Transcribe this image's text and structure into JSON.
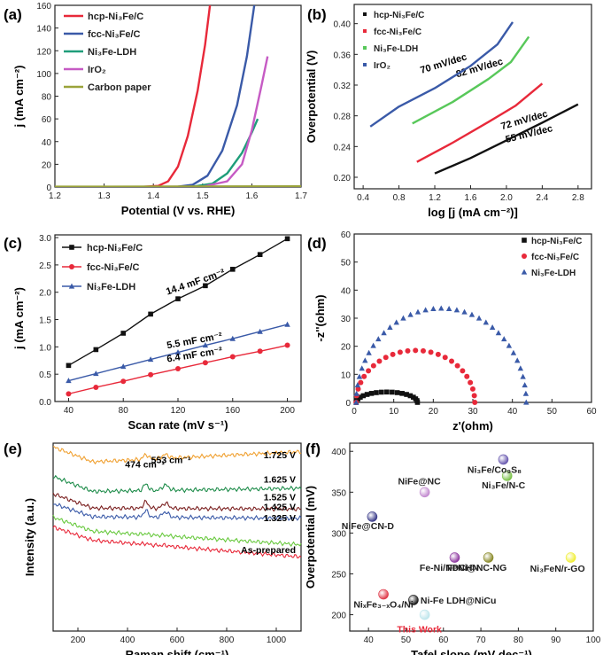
{
  "colors": {
    "red": "#e8293a",
    "blue": "#3a5aa8",
    "green": "#1f9e7a",
    "magenta": "#c65bc4",
    "olive": "#9aa33a",
    "black": "#111111",
    "orange": "#f0a030",
    "darkgreen": "#1e8c4a",
    "maroon": "#7a1f1f",
    "ltgreen": "#69c93f",
    "lightgreen": "#58c85a"
  },
  "chart_data": [
    {
      "id": "a",
      "panel_label": "(a)",
      "type": "line",
      "xlabel": "Potential (V vs. RHE)",
      "ylabel": "j (mA cm⁻²)",
      "xlim": [
        1.2,
        1.7
      ],
      "ylim": [
        0,
        160
      ],
      "xticks": [
        "1.2",
        "1.3",
        "1.4",
        "1.5",
        "1.6",
        "1.7"
      ],
      "yticks": [
        "0",
        "20",
        "40",
        "60",
        "80",
        "100",
        "120",
        "140",
        "160"
      ],
      "series": [
        {
          "name": "hcp-Ni₃Fe/C",
          "color_key": "red",
          "points": [
            [
              1.2,
              0
            ],
            [
              1.38,
              0.2
            ],
            [
              1.41,
              1
            ],
            [
              1.43,
              5
            ],
            [
              1.45,
              18
            ],
            [
              1.47,
              45
            ],
            [
              1.49,
              85
            ],
            [
              1.505,
              125
            ],
            [
              1.515,
              160
            ]
          ]
        },
        {
          "name": "fcc-Ni₃Fe/C",
          "color_key": "blue",
          "points": [
            [
              1.2,
              0
            ],
            [
              1.45,
              0.3
            ],
            [
              1.48,
              2
            ],
            [
              1.51,
              10
            ],
            [
              1.54,
              32
            ],
            [
              1.57,
              72
            ],
            [
              1.59,
              115
            ],
            [
              1.605,
              160
            ]
          ]
        },
        {
          "name": "Ni₃Fe-LDH",
          "color_key": "green",
          "points": [
            [
              1.2,
              0
            ],
            [
              1.48,
              0.3
            ],
            [
              1.52,
              3
            ],
            [
              1.55,
              12
            ],
            [
              1.58,
              30
            ],
            [
              1.6,
              48
            ],
            [
              1.612,
              60
            ]
          ]
        },
        {
          "name": "IrO₂",
          "color_key": "magenta",
          "points": [
            [
              1.2,
              0
            ],
            [
              1.5,
              0.3
            ],
            [
              1.55,
              5
            ],
            [
              1.58,
              20
            ],
            [
              1.6,
              50
            ],
            [
              1.62,
              90
            ],
            [
              1.632,
              115
            ]
          ]
        },
        {
          "name": "Carbon paper",
          "color_key": "olive",
          "points": [
            [
              1.2,
              0.3
            ],
            [
              1.7,
              0.6
            ]
          ]
        }
      ]
    },
    {
      "id": "b",
      "panel_label": "(b)",
      "type": "line",
      "xlabel": "log [j (mA cm⁻²)]",
      "ylabel": "Overpotential (V)",
      "xlim": [
        0.3,
        2.95
      ],
      "ylim": [
        0.185,
        0.425
      ],
      "xticks": [
        "0.4",
        "0.8",
        "1.2",
        "1.6",
        "2.0",
        "2.4",
        "2.8"
      ],
      "yticks": [
        "0.20",
        "0.24",
        "0.28",
        "0.32",
        "0.36",
        "0.40"
      ],
      "legend": [
        "hcp-Ni₃Fe/C",
        "fcc-Ni₃Fe/C",
        "Ni₃Fe-LDH",
        "IrO₂"
      ],
      "legend_color_keys": [
        "black",
        "red",
        "lightgreen",
        "blue"
      ],
      "series": [
        {
          "name": "hcp-Ni₃Fe/C",
          "color_key": "black",
          "slope_label": "55 mV/dec",
          "points": [
            [
              1.2,
              0.205
            ],
            [
              1.6,
              0.225
            ],
            [
              2.0,
              0.248
            ],
            [
              2.4,
              0.271
            ],
            [
              2.8,
              0.295
            ]
          ]
        },
        {
          "name": "fcc-Ni₃Fe/C",
          "color_key": "red",
          "slope_label": "72 mV/dec",
          "points": [
            [
              1.0,
              0.22
            ],
            [
              1.4,
              0.245
            ],
            [
              1.8,
              0.272
            ],
            [
              2.1,
              0.293
            ],
            [
              2.4,
              0.322
            ]
          ]
        },
        {
          "name": "Ni₃Fe-LDH",
          "color_key": "lightgreen",
          "slope_label": "82 mV/dec",
          "points": [
            [
              0.95,
              0.27
            ],
            [
              1.4,
              0.298
            ],
            [
              1.8,
              0.328
            ],
            [
              2.05,
              0.35
            ],
            [
              2.25,
              0.383
            ]
          ]
        },
        {
          "name": "IrO₂",
          "color_key": "blue",
          "slope_label": "70 mV/dec",
          "points": [
            [
              0.48,
              0.266
            ],
            [
              0.8,
              0.292
            ],
            [
              1.2,
              0.316
            ],
            [
              1.6,
              0.345
            ],
            [
              1.9,
              0.373
            ],
            [
              2.07,
              0.402
            ]
          ]
        }
      ]
    },
    {
      "id": "c",
      "panel_label": "(c)",
      "type": "line",
      "xlabel": "Scan rate (mV s⁻¹)",
      "ylabel": "j (mA cm⁻²)",
      "xlim": [
        30,
        210
      ],
      "ylim": [
        0,
        3.05
      ],
      "xticks": [
        "40",
        "80",
        "120",
        "160",
        "200"
      ],
      "yticks": [
        "0.0",
        "0.5",
        "1.0",
        "1.5",
        "2.0",
        "2.5",
        "3.0"
      ],
      "x": [
        40,
        60,
        80,
        100,
        120,
        140,
        160,
        180,
        200
      ],
      "series": [
        {
          "name": "hcp-Ni₃Fe/C",
          "color_key": "black",
          "marker": "square",
          "capacitance": "14.4 mF cm⁻²",
          "values": [
            0.66,
            0.95,
            1.25,
            1.6,
            1.88,
            2.12,
            2.42,
            2.69,
            2.98
          ]
        },
        {
          "name": "fcc-Ni₃Fe/C",
          "color_key": "red",
          "marker": "circle",
          "capacitance": "5.5 mF cm⁻²",
          "values": [
            0.14,
            0.26,
            0.37,
            0.49,
            0.6,
            0.71,
            0.82,
            0.92,
            1.03
          ]
        },
        {
          "name": "Ni₃Fe-LDH",
          "color_key": "blue",
          "marker": "triangle",
          "capacitance": "6.4 mF cm⁻²",
          "values": [
            0.38,
            0.51,
            0.64,
            0.77,
            0.9,
            1.03,
            1.15,
            1.28,
            1.41
          ]
        }
      ]
    },
    {
      "id": "d",
      "panel_label": "(d)",
      "type": "scatter",
      "xlabel": "z'(ohm)",
      "ylabel": "-z''(ohm)",
      "xlim": [
        0,
        60
      ],
      "ylim": [
        0,
        60
      ],
      "xticks": [
        "0",
        "10",
        "20",
        "30",
        "40",
        "50",
        "60"
      ],
      "yticks": [
        "0",
        "10",
        "20",
        "30",
        "40",
        "50",
        "60"
      ],
      "series": [
        {
          "name": "hcp-Ni₃Fe/C",
          "color_key": "black",
          "marker": "square",
          "arc": [
            0.5,
            16,
            3.7
          ]
        },
        {
          "name": "fcc-Ni₃Fe/C",
          "color_key": "red",
          "marker": "circle",
          "arc": [
            0.5,
            30.5,
            18.5
          ]
        },
        {
          "name": "Ni₃Fe-LDH",
          "color_key": "blue",
          "marker": "triangle",
          "arc": [
            0.5,
            43.5,
            33.5
          ]
        }
      ]
    },
    {
      "id": "e",
      "panel_label": "(e)",
      "type": "line",
      "xlabel": "Raman shift (cm⁻¹)",
      "ylabel": "Intensity (a.u.)",
      "xlim": [
        100,
        1100
      ],
      "ylim": [
        0,
        10
      ],
      "xticks": [
        "200",
        "400",
        "600",
        "800",
        "1000"
      ],
      "annotations": [
        "474 cm⁻¹",
        "553 cm⁻¹"
      ],
      "series": [
        {
          "name": "1.725 V",
          "color_key": "orange",
          "start": 8.9,
          "end": 9.55
        },
        {
          "name": "1.625 V",
          "color_key": "darkgreen",
          "start": 7.4,
          "end": 7.6
        },
        {
          "name": "1.525 V",
          "color_key": "maroon",
          "start": 6.55,
          "end": 6.5
        },
        {
          "name": "1.425 V",
          "color_key": "blue",
          "start": 6.1,
          "end": 6.0
        },
        {
          "name": "1.325 V",
          "color_key": "ltgreen",
          "start": 5.45,
          "end": 4.6
        },
        {
          "name": "As-prepared",
          "color_key": "red",
          "start": 5.0,
          "end": 3.95
        }
      ]
    },
    {
      "id": "f",
      "panel_label": "(f)",
      "type": "scatter",
      "xlabel": "Tafel slope (mV dec⁻¹)",
      "ylabel": "Overpotential (mV)",
      "xlim": [
        35,
        100
      ],
      "ylim": [
        180,
        410
      ],
      "xticks": [
        "40",
        "50",
        "60",
        "70",
        "80",
        "90",
        "100"
      ],
      "yticks": [
        "200",
        "250",
        "300",
        "350",
        "400"
      ],
      "points": [
        {
          "label": "Ni₃Fe/Co₉S₈",
          "x": 76,
          "y": 390,
          "color": "#6a5ab0"
        },
        {
          "label": "Ni₃Fe/N-C",
          "x": 77,
          "y": 370,
          "color": "#7cc24a"
        },
        {
          "label": "NiFe@NC",
          "x": 55,
          "y": 350,
          "color": "#c38bd0"
        },
        {
          "label": "NiFe@CN-D",
          "x": 41,
          "y": 320,
          "color": "#3b3c8a"
        },
        {
          "label": "FeNi@NC-NG",
          "x": 72,
          "y": 270,
          "color": "#8a8a2a"
        },
        {
          "label": "Fe-Ni/NDCHN",
          "x": 63,
          "y": 270,
          "color": "#8e3aa0"
        },
        {
          "label": "Ni₃FeN/r-GO",
          "x": 94,
          "y": 270,
          "color": "#f0ee38"
        },
        {
          "label": "Ni-Fe LDH@NiCu",
          "x": 52,
          "y": 218,
          "color": "#1a1a1a"
        },
        {
          "label": "NiₓFe₃₋ₓO₄/Ni",
          "x": 44,
          "y": 225,
          "color": "#e03a4a"
        },
        {
          "label": "This Work",
          "x": 55,
          "y": 200,
          "color": "#bfe6ec",
          "label_color": "#e8293a"
        }
      ]
    }
  ]
}
